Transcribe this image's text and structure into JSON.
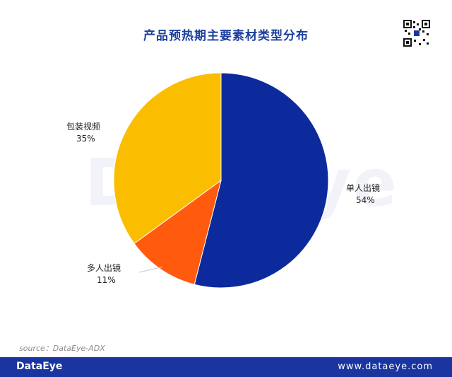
{
  "title": "产品预热期主要素材类型分布",
  "watermark": "DataEye",
  "chart_data": {
    "type": "pie",
    "title": "产品预热期主要素材类型分布",
    "slices": [
      {
        "label": "单人出镜",
        "value": 54,
        "pct_text": "54%",
        "color": "#0d2a9c"
      },
      {
        "label": "多人出镜",
        "value": 11,
        "pct_text": "11%",
        "color": "#ff5a0e"
      },
      {
        "label": "包装视频",
        "value": 35,
        "pct_text": "35%",
        "color": "#fbbd00"
      }
    ],
    "legend": "none (direct labels)"
  },
  "source": "source：DataEye-ADX",
  "footer": {
    "brand": "DataEye",
    "url": "www.dataeye.com",
    "background": "#1a35a0"
  },
  "qr_icon": "qr-code-icon"
}
